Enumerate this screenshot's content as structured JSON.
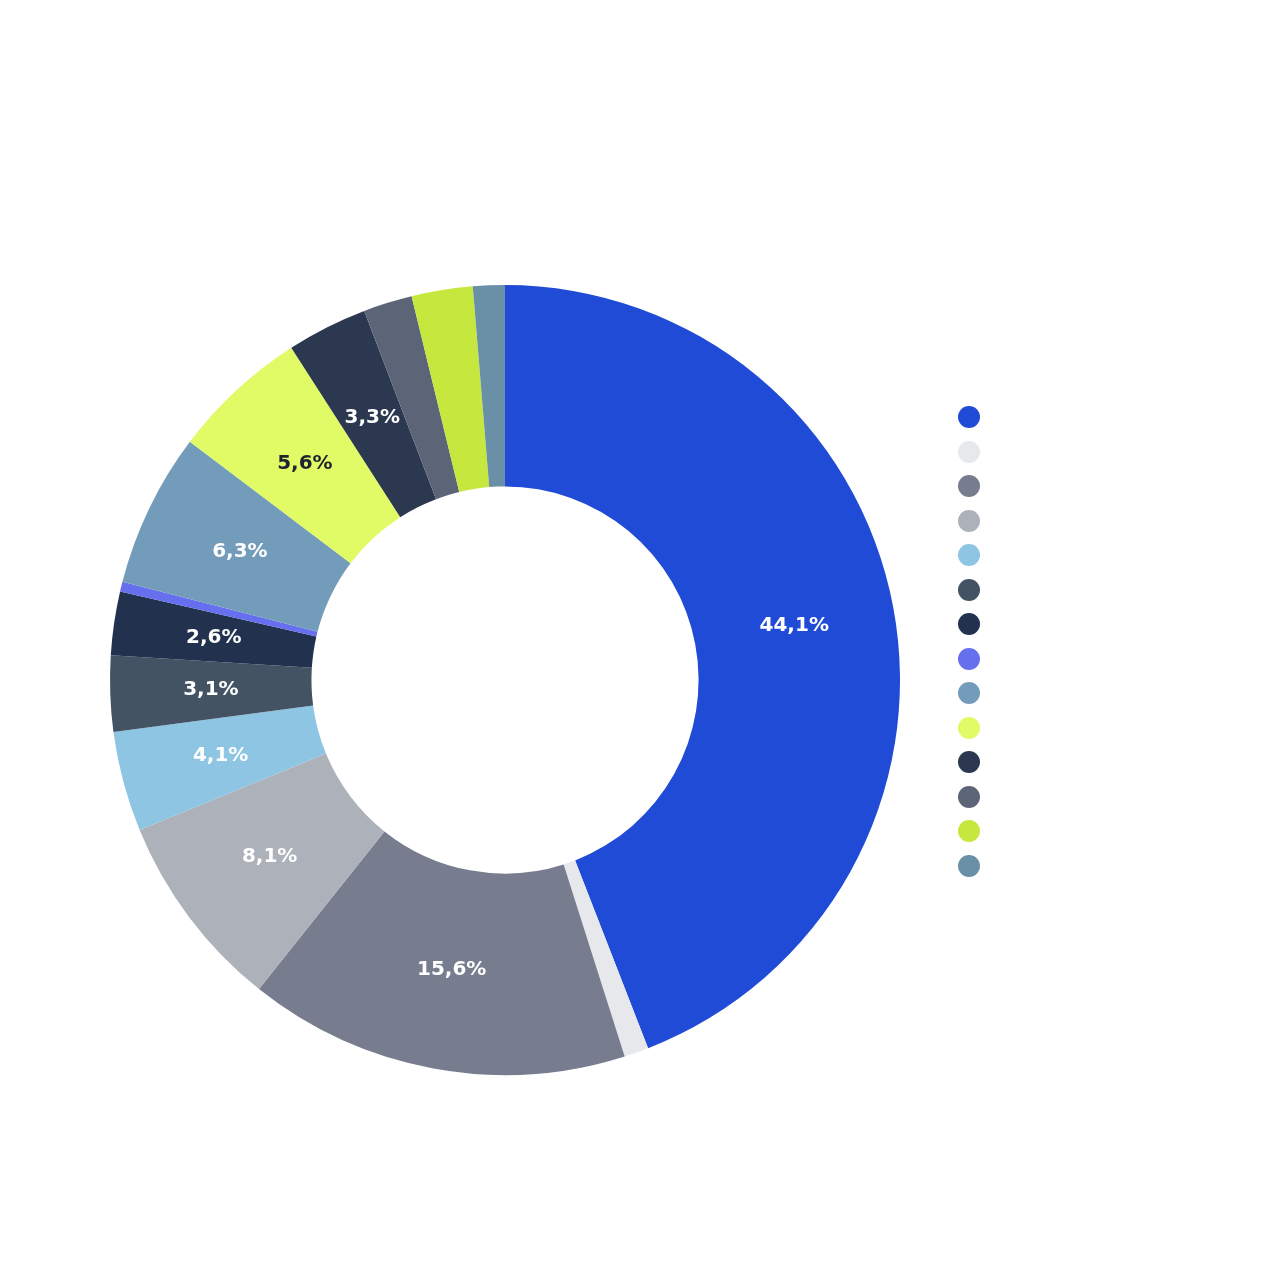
{
  "chart_data": {
    "type": "doughnut",
    "values": [
      44.1,
      1.0,
      15.6,
      8.1,
      4.1,
      3.1,
      2.6,
      0.4,
      6.3,
      5.6,
      3.3,
      2.0,
      2.5,
      1.3
    ],
    "value_labels": [
      "44,1%",
      null,
      "15,6%",
      "8,1%",
      "4,1%",
      "3,1%",
      "2,6%",
      null,
      "6,3%",
      "5,6%",
      "3,3%",
      null,
      null,
      null
    ],
    "colors": [
      "#1f4bd6",
      "#e6e8ec",
      "#777d8e",
      "#adb1ba",
      "#8ec5e3",
      "#435364",
      "#22324e",
      "#6670ee",
      "#739cba",
      "#e0fb66",
      "#2b3850",
      "#5c6578",
      "#c6e83e",
      "#6a90a8"
    ],
    "data_labels": true,
    "legend": "right"
  }
}
